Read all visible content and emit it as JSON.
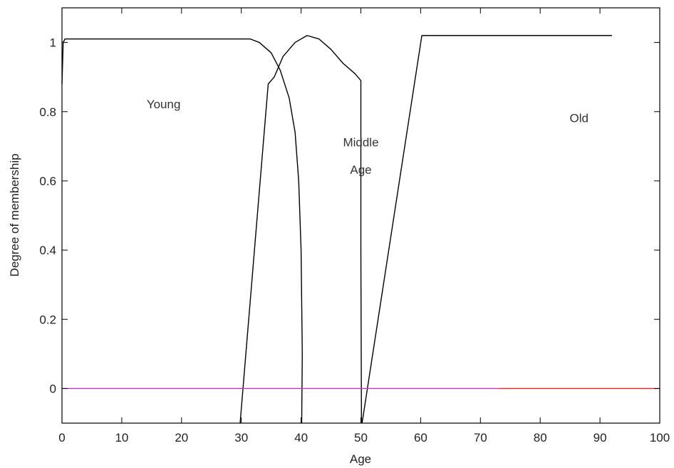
{
  "chart_data": {
    "type": "line",
    "title": "",
    "xlabel": "Age",
    "ylabel": "Degree of membership",
    "xlim": [
      0,
      100
    ],
    "ylim": [
      -0.1,
      1.1
    ],
    "xticks": [
      0,
      10,
      20,
      30,
      40,
      50,
      60,
      70,
      80,
      90,
      100
    ],
    "yticks": [
      0,
      0.2,
      0.4,
      0.6,
      0.8,
      1
    ],
    "ytick_labels": [
      "0",
      "0.2",
      "0.4",
      "0.6",
      "0.8",
      "1"
    ],
    "grid": false,
    "legend": "none",
    "series": [
      {
        "name": "Young",
        "color": "#000000",
        "x": [
          0,
          0.2,
          0.5,
          5,
          10,
          15,
          20,
          25,
          30,
          31.5,
          33,
          35,
          36.5,
          38,
          39,
          39.6,
          40,
          40.2,
          40.1
        ],
        "y": [
          0.88,
          1.0,
          1.01,
          1.01,
          1.01,
          1.01,
          1.01,
          1.01,
          1.01,
          1.01,
          1.0,
          0.97,
          0.92,
          0.84,
          0.74,
          0.6,
          0.4,
          0.1,
          -0.1
        ]
      },
      {
        "name": "Middle Age",
        "color": "#000000",
        "x": [
          29.8,
          34.5,
          35.5,
          37,
          39,
          41,
          43,
          45,
          47,
          49,
          50,
          50,
          50.1
        ],
        "y": [
          -0.1,
          0.88,
          0.9,
          0.96,
          1.0,
          1.02,
          1.01,
          0.98,
          0.94,
          0.91,
          0.89,
          0.4,
          -0.1
        ]
      },
      {
        "name": "Old",
        "color": "#000000",
        "x": [
          50.2,
          60.2,
          92
        ],
        "y": [
          -0.1,
          1.02,
          1.02
        ]
      },
      {
        "name": "",
        "color": "#cc33cc",
        "x": [
          0,
          73
        ],
        "y": [
          0,
          0
        ]
      },
      {
        "name": "",
        "color": "#ff2020",
        "x": [
          73,
          100
        ],
        "y": [
          0,
          0
        ]
      }
    ],
    "annotations": [
      {
        "text": "Young",
        "x": 17,
        "y": 0.81
      },
      {
        "text": "Middle",
        "x": 50,
        "y": 0.7
      },
      {
        "text": "Age",
        "x": 50,
        "y": 0.62
      },
      {
        "text": "Old",
        "x": 86.5,
        "y": 0.77
      }
    ]
  }
}
